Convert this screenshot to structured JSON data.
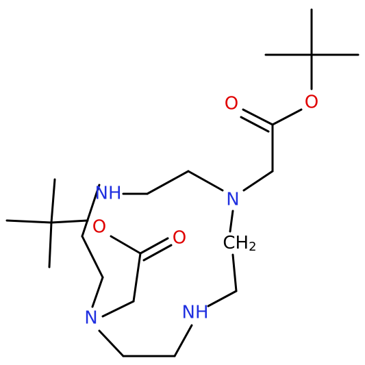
{
  "atoms": [
    {
      "label": "O"
    },
    {
      "label": "O"
    },
    {
      "label": "NH"
    },
    {
      "label": "N"
    },
    {
      "label": "O"
    },
    {
      "label": "O"
    },
    {
      "label": "CH",
      "subscript": "2"
    },
    {
      "label": "NH"
    },
    {
      "label": "N"
    }
  ]
}
